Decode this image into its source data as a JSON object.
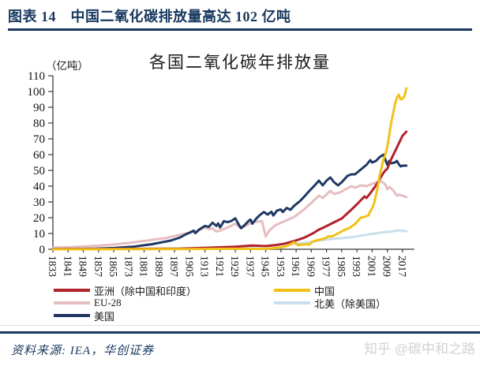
{
  "header": {
    "title": "图表 14　中国二氧化碳排放量高达 102 亿吨"
  },
  "footer": {
    "source": "资料来源: IEA，华创证券",
    "watermark": "知乎 @碳中和之路"
  },
  "chart_data": {
    "type": "line",
    "title": "各国二氧化碳年排放量",
    "unit_label": "（亿吨）",
    "xlabel": "",
    "ylabel": "",
    "ylim": [
      0,
      110
    ],
    "y_ticks": [
      0,
      10,
      20,
      30,
      40,
      50,
      60,
      70,
      80,
      90,
      100,
      110
    ],
    "x_tick_labels": [
      1833,
      1841,
      1849,
      1857,
      1865,
      1873,
      1881,
      1889,
      1897,
      1905,
      1913,
      1921,
      1929,
      1937,
      1945,
      1953,
      1961,
      1969,
      1977,
      1985,
      1993,
      2001,
      2009,
      2017
    ],
    "x_range": [
      1833,
      2019
    ],
    "grid": false,
    "legend_position": "bottom",
    "axis_color": "#3a3a3a",
    "x_axis_color": "#808080",
    "series": [
      {
        "name": "EU-28",
        "color": "#E6BDC0",
        "points": [
          [
            1833,
            1
          ],
          [
            1843,
            1.4
          ],
          [
            1853,
            2
          ],
          [
            1863,
            2.8
          ],
          [
            1873,
            4
          ],
          [
            1883,
            5.6
          ],
          [
            1893,
            7.2
          ],
          [
            1900,
            9.2
          ],
          [
            1905,
            10.6
          ],
          [
            1910,
            12.2
          ],
          [
            1913,
            13.8
          ],
          [
            1915,
            12.8
          ],
          [
            1917,
            13.2
          ],
          [
            1919,
            11.2
          ],
          [
            1921,
            11.8
          ],
          [
            1925,
            13.8
          ],
          [
            1929,
            16.2
          ],
          [
            1932,
            13.2
          ],
          [
            1935,
            15.2
          ],
          [
            1938,
            17.2
          ],
          [
            1941,
            17.6
          ],
          [
            1943,
            17.8
          ],
          [
            1945,
            8
          ],
          [
            1947,
            12
          ],
          [
            1950,
            15.2
          ],
          [
            1955,
            17.8
          ],
          [
            1960,
            20.5
          ],
          [
            1965,
            25
          ],
          [
            1970,
            30.5
          ],
          [
            1973,
            34
          ],
          [
            1975,
            32.5
          ],
          [
            1979,
            37
          ],
          [
            1981,
            35
          ],
          [
            1984,
            36
          ],
          [
            1987,
            38
          ],
          [
            1990,
            40
          ],
          [
            1992,
            39
          ],
          [
            1995,
            40.5
          ],
          [
            1998,
            40
          ],
          [
            2001,
            41.5
          ],
          [
            2004,
            42.5
          ],
          [
            2006,
            43
          ],
          [
            2008,
            41
          ],
          [
            2009,
            38
          ],
          [
            2010,
            39.5
          ],
          [
            2012,
            37.5
          ],
          [
            2014,
            34
          ],
          [
            2015,
            34.5
          ],
          [
            2017,
            34
          ],
          [
            2019,
            33
          ]
        ]
      },
      {
        "name": "北美（除美国）",
        "color": "#C9E0EC",
        "points": [
          [
            1833,
            0.1
          ],
          [
            1880,
            0.3
          ],
          [
            1900,
            0.6
          ],
          [
            1913,
            1
          ],
          [
            1925,
            1.4
          ],
          [
            1932,
            1.2
          ],
          [
            1940,
            1.8
          ],
          [
            1945,
            2.2
          ],
          [
            1950,
            2.6
          ],
          [
            1955,
            3
          ],
          [
            1960,
            3.4
          ],
          [
            1965,
            4
          ],
          [
            1970,
            5
          ],
          [
            1975,
            5.8
          ],
          [
            1980,
            6.6
          ],
          [
            1985,
            7
          ],
          [
            1990,
            7.6
          ],
          [
            1995,
            8.6
          ],
          [
            2000,
            9.6
          ],
          [
            2003,
            10
          ],
          [
            2005,
            10.4
          ],
          [
            2008,
            11
          ],
          [
            2010,
            11
          ],
          [
            2012,
            11.4
          ],
          [
            2014,
            12
          ],
          [
            2016,
            11.8
          ],
          [
            2017,
            11.6
          ],
          [
            2019,
            11.4
          ]
        ]
      },
      {
        "name": "美国",
        "color": "#1F3864",
        "points": [
          [
            1833,
            0.1
          ],
          [
            1845,
            0.2
          ],
          [
            1855,
            0.4
          ],
          [
            1865,
            0.8
          ],
          [
            1875,
            1.6
          ],
          [
            1885,
            3.2
          ],
          [
            1895,
            5.5
          ],
          [
            1900,
            7.5
          ],
          [
            1903,
            9.5
          ],
          [
            1905,
            10.5
          ],
          [
            1907,
            11.8
          ],
          [
            1908,
            10.2
          ],
          [
            1910,
            12.5
          ],
          [
            1913,
            14.8
          ],
          [
            1915,
            14.2
          ],
          [
            1917,
            16.8
          ],
          [
            1919,
            14.8
          ],
          [
            1920,
            16.4
          ],
          [
            1921,
            13.8
          ],
          [
            1923,
            17.8
          ],
          [
            1925,
            17.2
          ],
          [
            1927,
            18
          ],
          [
            1929,
            19.6
          ],
          [
            1931,
            15.2
          ],
          [
            1932,
            13.4
          ],
          [
            1934,
            15.4
          ],
          [
            1936,
            18
          ],
          [
            1937,
            18.8
          ],
          [
            1938,
            16.2
          ],
          [
            1940,
            19.4
          ],
          [
            1942,
            21.8
          ],
          [
            1944,
            23.6
          ],
          [
            1946,
            22
          ],
          [
            1948,
            23.8
          ],
          [
            1949,
            21.4
          ],
          [
            1951,
            24.6
          ],
          [
            1953,
            25.2
          ],
          [
            1954,
            23.6
          ],
          [
            1956,
            26.2
          ],
          [
            1958,
            25
          ],
          [
            1960,
            27.6
          ],
          [
            1963,
            30.5
          ],
          [
            1965,
            33
          ],
          [
            1968,
            37
          ],
          [
            1970,
            39.5
          ],
          [
            1973,
            43.5
          ],
          [
            1975,
            40.5
          ],
          [
            1977,
            43.5
          ],
          [
            1979,
            45.5
          ],
          [
            1981,
            42.5
          ],
          [
            1983,
            40.5
          ],
          [
            1985,
            42.5
          ],
          [
            1988,
            46.5
          ],
          [
            1990,
            47.5
          ],
          [
            1992,
            47.5
          ],
          [
            1994,
            49.5
          ],
          [
            1996,
            51.5
          ],
          [
            1998,
            53.5
          ],
          [
            2000,
            56.5
          ],
          [
            2001,
            55
          ],
          [
            2003,
            56
          ],
          [
            2005,
            58.5
          ],
          [
            2007,
            60
          ],
          [
            2009,
            53.5
          ],
          [
            2010,
            56
          ],
          [
            2011,
            54.5
          ],
          [
            2013,
            55
          ],
          [
            2014,
            56
          ],
          [
            2015,
            54
          ],
          [
            2016,
            52.5
          ],
          [
            2017,
            53
          ],
          [
            2019,
            53
          ]
        ]
      },
      {
        "name": "亚洲（除中国和印度）",
        "color": "#B2222A",
        "points": [
          [
            1833,
            0.1
          ],
          [
            1900,
            0.4
          ],
          [
            1913,
            0.9
          ],
          [
            1929,
            1.6
          ],
          [
            1938,
            2.4
          ],
          [
            1945,
            2
          ],
          [
            1950,
            2.6
          ],
          [
            1955,
            3.6
          ],
          [
            1960,
            5.2
          ],
          [
            1965,
            7.2
          ],
          [
            1970,
            10.2
          ],
          [
            1973,
            12.5
          ],
          [
            1975,
            13.5
          ],
          [
            1980,
            16.5
          ],
          [
            1985,
            19.5
          ],
          [
            1990,
            25
          ],
          [
            1993,
            28.5
          ],
          [
            1995,
            31
          ],
          [
            1997,
            33.5
          ],
          [
            1998,
            32.5
          ],
          [
            2000,
            35.5
          ],
          [
            2003,
            40.5
          ],
          [
            2005,
            44.5
          ],
          [
            2007,
            48.5
          ],
          [
            2008,
            50
          ],
          [
            2009,
            51
          ],
          [
            2011,
            57
          ],
          [
            2013,
            62
          ],
          [
            2015,
            67
          ],
          [
            2017,
            72
          ],
          [
            2019,
            74.5
          ]
        ]
      },
      {
        "name": "中国",
        "color": "#F2C118",
        "points": [
          [
            1833,
            0
          ],
          [
            1900,
            0.1
          ],
          [
            1930,
            0.3
          ],
          [
            1945,
            0.2
          ],
          [
            1950,
            0.8
          ],
          [
            1953,
            1.2
          ],
          [
            1956,
            2
          ],
          [
            1958,
            3.2
          ],
          [
            1960,
            4.5
          ],
          [
            1962,
            2.5
          ],
          [
            1965,
            3.2
          ],
          [
            1968,
            3
          ],
          [
            1970,
            5
          ],
          [
            1973,
            6
          ],
          [
            1976,
            6.8
          ],
          [
            1978,
            8.2
          ],
          [
            1980,
            8.2
          ],
          [
            1983,
            10
          ],
          [
            1986,
            12
          ],
          [
            1989,
            13.5
          ],
          [
            1992,
            16
          ],
          [
            1995,
            20
          ],
          [
            1997,
            20.5
          ],
          [
            1999,
            21.5
          ],
          [
            2000,
            24
          ],
          [
            2001,
            26
          ],
          [
            2002,
            29
          ],
          [
            2003,
            34
          ],
          [
            2004,
            40
          ],
          [
            2005,
            47
          ],
          [
            2006,
            52
          ],
          [
            2007,
            57
          ],
          [
            2008,
            60
          ],
          [
            2009,
            65
          ],
          [
            2010,
            72
          ],
          [
            2011,
            80
          ],
          [
            2012,
            86
          ],
          [
            2013,
            92
          ],
          [
            2014,
            96
          ],
          [
            2015,
            98
          ],
          [
            2016,
            95
          ],
          [
            2017,
            95.5
          ],
          [
            2018,
            97
          ],
          [
            2019,
            102
          ]
        ]
      }
    ],
    "legend_order": [
      3,
      4,
      0,
      1,
      2
    ]
  }
}
